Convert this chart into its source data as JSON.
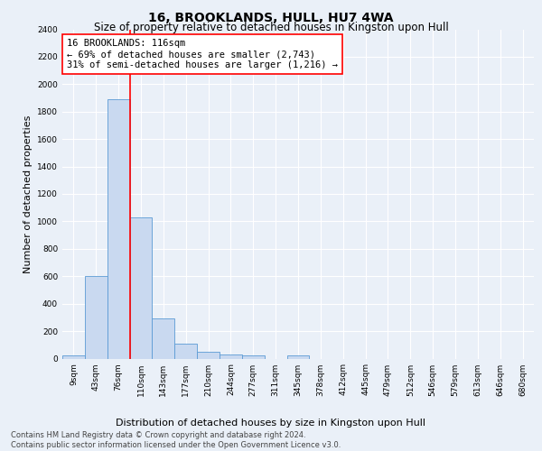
{
  "title": "16, BROOKLANDS, HULL, HU7 4WA",
  "subtitle": "Size of property relative to detached houses in Kingston upon Hull",
  "xlabel": "Distribution of detached houses by size in Kingston upon Hull",
  "ylabel": "Number of detached properties",
  "footer_line1": "Contains HM Land Registry data © Crown copyright and database right 2024.",
  "footer_line2": "Contains public sector information licensed under the Open Government Licence v3.0.",
  "bin_labels": [
    "9sqm",
    "43sqm",
    "76sqm",
    "110sqm",
    "143sqm",
    "177sqm",
    "210sqm",
    "244sqm",
    "277sqm",
    "311sqm",
    "345sqm",
    "378sqm",
    "412sqm",
    "445sqm",
    "479sqm",
    "512sqm",
    "546sqm",
    "579sqm",
    "613sqm",
    "646sqm",
    "680sqm"
  ],
  "bar_values": [
    20,
    600,
    1890,
    1030,
    290,
    110,
    47,
    30,
    20,
    0,
    20,
    0,
    0,
    0,
    0,
    0,
    0,
    0,
    0,
    0,
    0
  ],
  "bar_color": "#c9d9f0",
  "bar_edge_color": "#5b9bd5",
  "property_line_bin": 2.5,
  "property_line_color": "red",
  "annotation_text": "16 BROOKLANDS: 116sqm\n← 69% of detached houses are smaller (2,743)\n31% of semi-detached houses are larger (1,216) →",
  "annotation_box_color": "white",
  "annotation_box_edge_color": "red",
  "ylim": [
    0,
    2400
  ],
  "yticks": [
    0,
    200,
    400,
    600,
    800,
    1000,
    1200,
    1400,
    1600,
    1800,
    2000,
    2200,
    2400
  ],
  "background_color": "#eaf0f8",
  "plot_background": "#eaf0f8",
  "grid_color": "white",
  "title_fontsize": 10,
  "subtitle_fontsize": 8.5,
  "label_fontsize": 8,
  "tick_fontsize": 6.5,
  "footer_fontsize": 6,
  "annotation_fontsize": 7.5
}
